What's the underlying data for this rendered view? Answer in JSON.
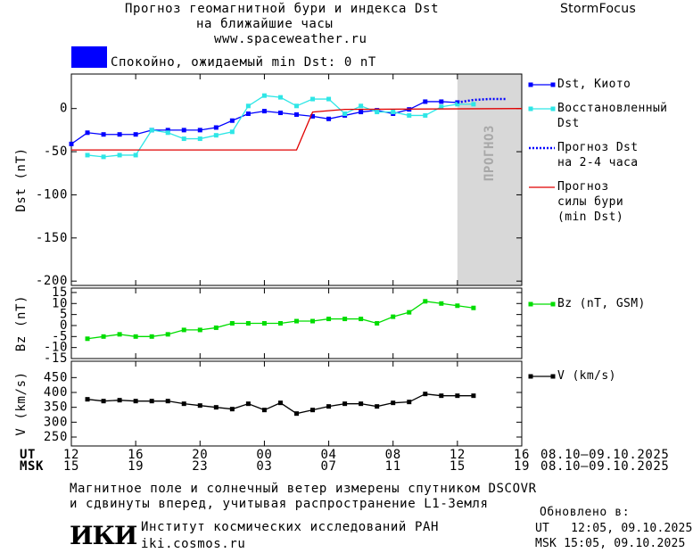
{
  "header": {
    "title": "Прогноз геомагнитной бури и индекса Dst",
    "subtitle": "на ближайшие часы",
    "url": "www.spaceweather.ru",
    "brand": "StormFocus"
  },
  "status": {
    "text": "Спокойно, ожидаемый min Dst: 0 nT",
    "color": "#0000ff"
  },
  "chart_data": [
    {
      "type": "line",
      "ylabel": "Dst (nT)",
      "xlim": [
        0,
        28
      ],
      "ylim": [
        -205,
        40
      ],
      "yticks": [
        -200,
        -150,
        -100,
        -50,
        0
      ],
      "forecast_region": [
        24,
        28
      ],
      "forecast_label": "ПРОГНОЗ",
      "forecast_color": "#d8d8d8",
      "series": [
        {
          "name": "Dst, Киото",
          "color": "#0000ff",
          "style": "solid",
          "marker": true,
          "x": [
            0,
            1,
            2,
            3,
            4,
            5,
            6,
            7,
            8,
            9,
            10,
            11,
            12,
            13,
            14,
            15,
            16,
            17,
            18,
            19,
            20,
            21,
            22,
            23,
            24
          ],
          "values": [
            -41,
            -28,
            -30,
            -30,
            -30,
            -25,
            -25,
            -25,
            -25,
            -22,
            -14,
            -6,
            -3,
            -5,
            -7,
            -9,
            -12,
            -8,
            -4,
            -2,
            -6,
            -1,
            8,
            8,
            7
          ]
        },
        {
          "name": "Восстановленный\nDst",
          "color": "#2ee6e6",
          "style": "solid",
          "marker": true,
          "x": [
            1,
            2,
            3,
            4,
            5,
            6,
            7,
            8,
            9,
            10,
            11,
            12,
            13,
            14,
            15,
            16,
            17,
            18,
            19,
            20,
            21,
            22,
            23,
            24,
            25
          ],
          "values": [
            -54,
            -56,
            -54,
            -54,
            -25,
            -28,
            -35,
            -35,
            -31,
            -27,
            3,
            15,
            13,
            3,
            11,
            11,
            -6,
            3,
            -4,
            -4,
            -8,
            -8,
            2,
            5,
            5
          ]
        },
        {
          "name": "Прогноз Dst\nна 2-4 часа",
          "color": "#0000ff",
          "style": "dotted",
          "marker": false,
          "x": [
            24,
            25,
            26,
            27
          ],
          "values": [
            7,
            10,
            11,
            11
          ]
        },
        {
          "name": "Прогноз\nсилы бури\n(min Dst)",
          "color": "#e00000",
          "style": "solid",
          "marker": false,
          "x": [
            0,
            14,
            15,
            17,
            28
          ],
          "values": [
            -48,
            -48,
            -4,
            -1,
            0
          ]
        }
      ]
    },
    {
      "type": "line",
      "ylabel": "Bz (nT)",
      "xlim": [
        0,
        28
      ],
      "ylim": [
        -15,
        17
      ],
      "yticks": [
        -15,
        -10,
        -5,
        0,
        5,
        10,
        15
      ],
      "series": [
        {
          "name": "Bz (nT, GSM)",
          "color": "#00dd00",
          "style": "solid",
          "marker": true,
          "x": [
            1,
            2,
            3,
            4,
            5,
            6,
            7,
            8,
            9,
            10,
            11,
            12,
            13,
            14,
            15,
            16,
            17,
            18,
            19,
            20,
            21,
            22,
            23,
            24,
            25
          ],
          "values": [
            -6,
            -5,
            -4,
            -5,
            -5,
            -4,
            -2,
            -2,
            -1,
            1,
            1,
            1,
            1,
            2,
            2,
            3,
            3,
            3,
            1,
            4,
            6,
            11,
            10,
            9,
            8
          ]
        }
      ]
    },
    {
      "type": "line",
      "ylabel": "V (km/s)",
      "xlim": [
        0,
        28
      ],
      "ylim": [
        220,
        505
      ],
      "yticks": [
        250,
        300,
        350,
        400,
        450
      ],
      "xrow_ut": "UT",
      "xrow_msk": "MSK",
      "date_ut": "08.10–09.10.2025",
      "date_msk": "08.10–09.10.2025",
      "xticks": [
        {
          "value": 0,
          "label": "12"
        },
        {
          "value": 4,
          "label": "16"
        },
        {
          "value": 8,
          "label": "20"
        },
        {
          "value": 12,
          "label": "00"
        },
        {
          "value": 16,
          "label": "04"
        },
        {
          "value": 20,
          "label": "08"
        },
        {
          "value": 24,
          "label": "12"
        },
        {
          "value": 28,
          "label": "16"
        }
      ],
      "xticks_msk": [
        {
          "value": 0,
          "label": "15"
        },
        {
          "value": 4,
          "label": "19"
        },
        {
          "value": 8,
          "label": "23"
        },
        {
          "value": 12,
          "label": "03"
        },
        {
          "value": 16,
          "label": "07"
        },
        {
          "value": 20,
          "label": "11"
        },
        {
          "value": 24,
          "label": "15"
        },
        {
          "value": 28,
          "label": "19"
        }
      ],
      "series": [
        {
          "name": "V (km/s)",
          "color": "#000000",
          "style": "solid",
          "marker": true,
          "x": [
            1,
            2,
            3,
            4,
            5,
            6,
            7,
            8,
            9,
            10,
            11,
            12,
            13,
            14,
            15,
            16,
            17,
            18,
            19,
            20,
            21,
            22,
            23,
            24,
            25
          ],
          "values": [
            377,
            371,
            374,
            371,
            371,
            371,
            362,
            356,
            350,
            344,
            362,
            341,
            365,
            329,
            341,
            353,
            362,
            362,
            353,
            365,
            368,
            395,
            389,
            389,
            389
          ]
        }
      ]
    }
  ],
  "footer": {
    "note_1": "Магнитное поле и солнечный ветер измерены спутником DSCOVR",
    "note_2": "и сдвинуты вперед, учитывая распространение L1-Земля",
    "logo": "ИКИ",
    "institute": "Институт космических исследований РАН",
    "site": "iki.cosmos.ru",
    "updated_label": "Обновлено в:",
    "updated_ut": "UT   12:05, 09.10.2025",
    "updated_msk": "MSK 15:05, 09.10.2025"
  }
}
